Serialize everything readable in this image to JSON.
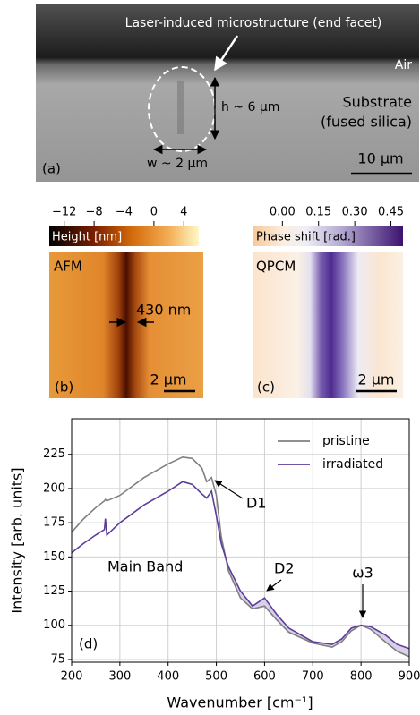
{
  "panel_a": {
    "title": "Laser-induced microstructure (end facet)",
    "air": "Air",
    "substrate": [
      "Substrate",
      "(fused silica)"
    ],
    "height": "h ~ 6 µm",
    "width": "w ~ 2 µm",
    "panel_label": "(a)",
    "scale_bar": "10 µm"
  },
  "panel_b": {
    "colorbar_label": "Height [nm]",
    "colorbar_lim": [
      -14,
      6
    ],
    "colorbar_ticks": [
      {
        "value": -12,
        "label": "−12"
      },
      {
        "value": -8,
        "label": "−8"
      },
      {
        "value": -4,
        "label": "−4"
      },
      0,
      4
    ],
    "image_label": "AFM",
    "feature": "430 nm",
    "panel_label": "(b)",
    "scale_bar": "2 µm"
  },
  "panel_c": {
    "colorbar_label": "Phase shift [rad.]",
    "colorbar_lim": [
      -0.12,
      0.5
    ],
    "colorbar_ticks": [
      {
        "value": 0,
        "label": "0.00"
      },
      0.15,
      {
        "value": 0.3,
        "label": "0.30"
      },
      0.45
    ],
    "image_label": "QPCM",
    "panel_label": "(c)",
    "scale_bar": "2 µm"
  },
  "chart_data": {
    "type": "line",
    "x_label": "Wavenumber [cm⁻¹]",
    "y_label": "Intensity [arb. units]",
    "panel_label": "(d)",
    "x": [
      200,
      225,
      250,
      268,
      270,
      273,
      300,
      350,
      400,
      430,
      450,
      470,
      480,
      490,
      500,
      510,
      525,
      550,
      575,
      600,
      625,
      650,
      700,
      740,
      760,
      780,
      800,
      820,
      850,
      875,
      900
    ],
    "series": [
      {
        "name": "pristine",
        "color": "#808080",
        "values": [
          168,
          178,
          186,
          191,
          192,
          191,
          195,
          208,
          218,
          223,
          222,
          215,
          205,
          208,
          195,
          165,
          140,
          120,
          112,
          114,
          104,
          95,
          87,
          84,
          88,
          96,
          100,
          97,
          88,
          81,
          77
        ]
      },
      {
        "name": "irradiated",
        "color": "#5e3c99",
        "values": [
          153,
          160,
          166,
          170,
          178,
          166,
          175,
          188,
          198,
          205,
          203,
          196,
          193,
          198,
          180,
          160,
          143,
          125,
          114,
          120,
          108,
          98,
          88,
          86,
          90,
          98,
          100,
          99,
          93,
          86,
          83
        ]
      }
    ],
    "xlim": [
      200,
      900
    ],
    "ylim": [
      73,
      251
    ],
    "xticks": [
      200,
      300,
      400,
      500,
      600,
      700,
      800,
      900
    ],
    "yticks": [
      75,
      100,
      125,
      150,
      175,
      200,
      225
    ],
    "grid": true,
    "legend": "upper right",
    "fill_between": true,
    "fill_color": "#d9d0e9",
    "annotations": [
      "D1",
      "D2",
      "ω3",
      "Main Band"
    ]
  }
}
